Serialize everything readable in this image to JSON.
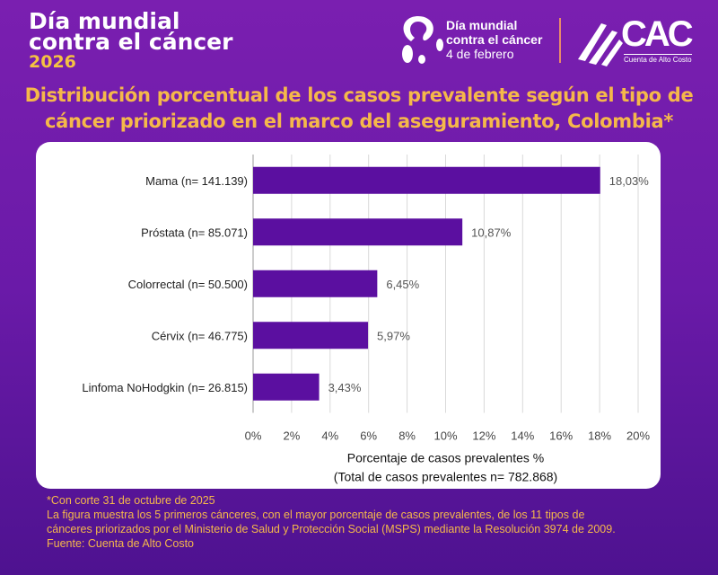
{
  "header": {
    "brand_line1": "Día mundial",
    "brand_line2": "contra el cáncer",
    "brand_year": "2026",
    "campaign_line1": "Día mundial",
    "campaign_line2": "contra el cáncer",
    "campaign_date": "4 de febrero",
    "org_logo": "CAC",
    "org_name": "Cuenta de Alto Costo"
  },
  "title": "Distribución porcentual de los casos prevalente según el tipo de cáncer priorizado en el marco del aseguramiento, Colombia*",
  "chart_data": {
    "type": "bar",
    "orientation": "horizontal",
    "categories": [
      "Mama (n= 141.139)",
      "Próstata (n= 85.071)",
      "Colorrectal (n= 50.500)",
      "Cérvix (n= 46.775)",
      "Linfoma NoHodgkin (n= 26.815)"
    ],
    "values": [
      18.03,
      10.87,
      6.45,
      5.97,
      3.43
    ],
    "data_labels": [
      "18,03%",
      "10,87%",
      "6,45%",
      "5,97%",
      "3,43%"
    ],
    "xlim": [
      0,
      20
    ],
    "xticks": [
      "0%",
      "2%",
      "4%",
      "6%",
      "8%",
      "10%",
      "12%",
      "14%",
      "16%",
      "18%",
      "20%"
    ],
    "xlabel_line1": "Porcentaje de casos prevalentes %",
    "xlabel_line2": "(Total de casos prevalentes n= 782.868)",
    "grid": true,
    "bar_color": "#5b0fa0"
  },
  "notes": [
    "*Con corte 31 de octubre de 2025",
    "La figura muestra los 5 primeros cánceres, con el mayor porcentaje de casos prevalentes, de los 11 tipos de",
    "cánceres priorizados por el Ministerio de Salud y Protección Social (MSPS) mediante la Resolución 3974 de 2009.",
    "Fuente: Cuenta de Alto Costo"
  ]
}
